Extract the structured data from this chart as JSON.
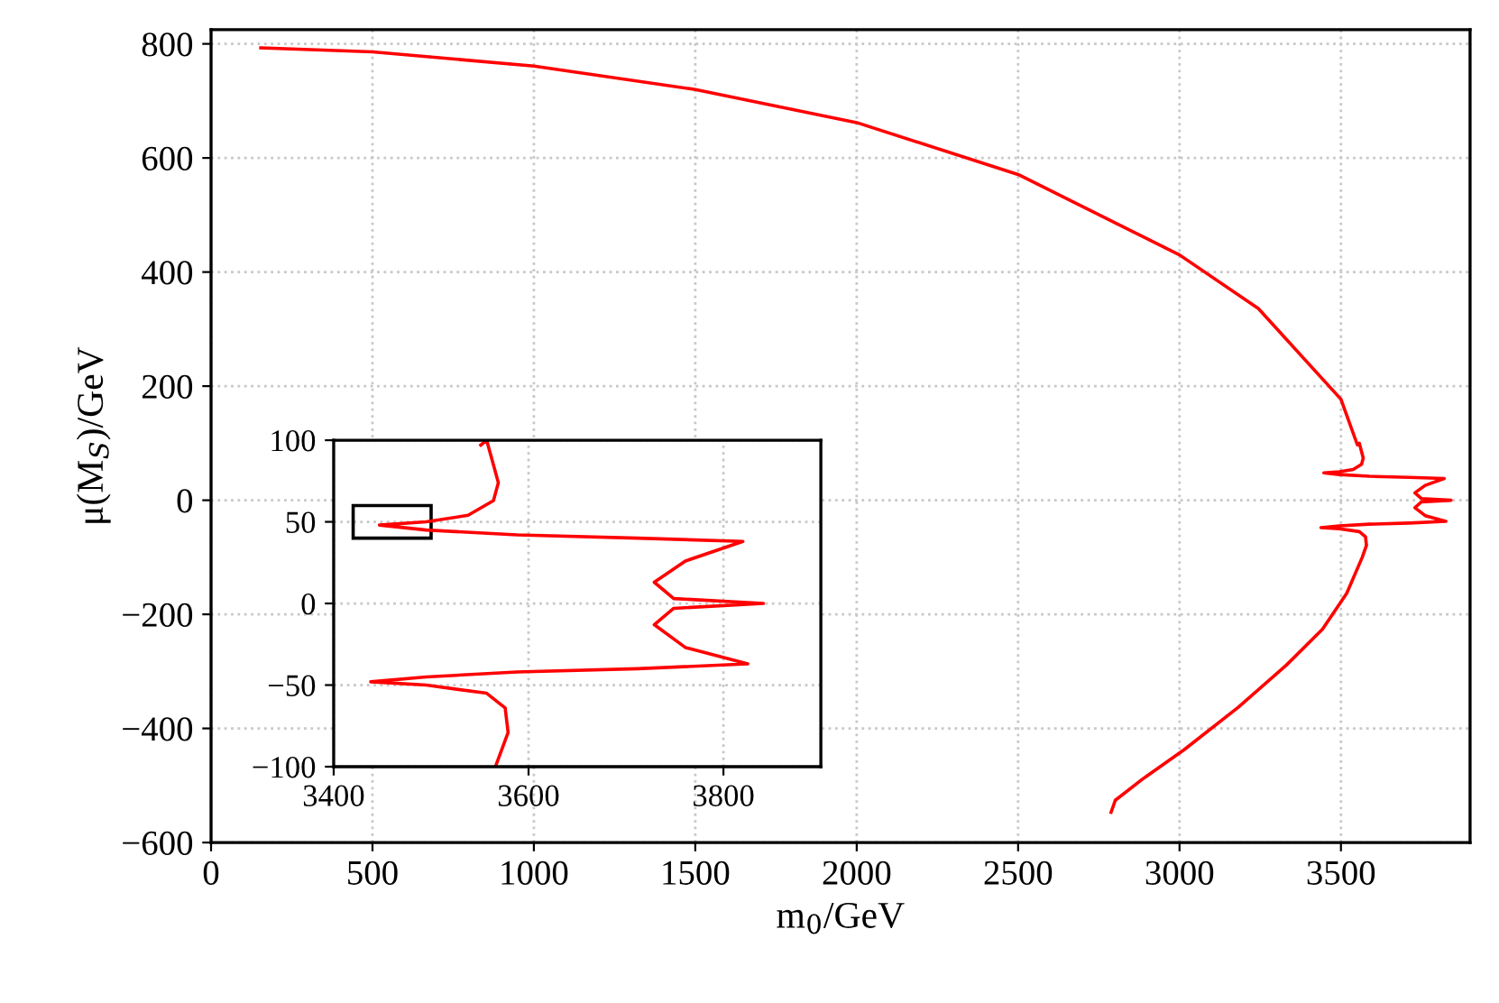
{
  "chart_data": [
    {
      "type": "line",
      "xlabel": "m$_{0}$/GeV",
      "ylabel": "μ(M$_{S}$)/GeV",
      "xlim": [
        0,
        3900
      ],
      "ylim": [
        -600,
        825
      ],
      "xticks": [
        0,
        500,
        1000,
        1500,
        2000,
        2500,
        3000,
        3500
      ],
      "yticks": [
        -600,
        -400,
        -200,
        0,
        200,
        400,
        600,
        800
      ],
      "grid": true,
      "marker": "none",
      "line_style": "solid",
      "series": [
        {
          "color": "#ff0000",
          "x": [
            154,
            500,
            1000,
            1500,
            2000,
            2500,
            3000,
            3244,
            3500,
            3551,
            3557,
            3569,
            3564,
            3538,
            3495,
            3447,
            3495,
            3588,
            3712,
            3820,
            3761,
            3729,
            3749,
            3841,
            3749,
            3729,
            3761,
            3825,
            3712,
            3588,
            3495,
            3438,
            3495,
            3557,
            3576,
            3579,
            3566,
            3518,
            3443,
            3331,
            3182,
            3015,
            2885,
            2801,
            2788
          ],
          "values": [
            793,
            786,
            761,
            720,
            662,
            571,
            430,
            336,
            177,
            97,
            100,
            74,
            63,
            54,
            50,
            48,
            45,
            42,
            40,
            38,
            26,
            13,
            3,
            0,
            -3,
            -13,
            -27,
            -37,
            -40,
            -42,
            -45,
            -48,
            -50,
            -55,
            -64,
            -79,
            -100,
            -163,
            -226,
            -289,
            -363,
            -437,
            -489,
            -526,
            -547
          ]
        }
      ]
    },
    {
      "type": "line",
      "xlim": [
        3400,
        3900
      ],
      "ylim": [
        -100,
        100
      ],
      "xticks": [
        3400,
        3600,
        3800
      ],
      "yticks": [
        -100,
        -50,
        0,
        50,
        100
      ],
      "grid": true,
      "marker": "none",
      "line_style": "solid",
      "series": [
        {
          "color": "#ff0000",
          "x": [
            3551,
            3557,
            3569,
            3564,
            3538,
            3495,
            3447,
            3495,
            3588,
            3712,
            3820,
            3761,
            3729,
            3749,
            3841,
            3749,
            3729,
            3761,
            3825,
            3712,
            3588,
            3495,
            3438,
            3495,
            3557,
            3576,
            3579,
            3566
          ],
          "values": [
            97,
            100,
            74,
            63,
            54,
            50,
            48,
            45,
            42,
            40,
            38,
            26,
            13,
            3,
            0,
            -3,
            -13,
            -27,
            -37,
            -40,
            -42,
            -45,
            -48,
            -50,
            -55,
            -64,
            -79,
            -100
          ]
        }
      ]
    }
  ]
}
